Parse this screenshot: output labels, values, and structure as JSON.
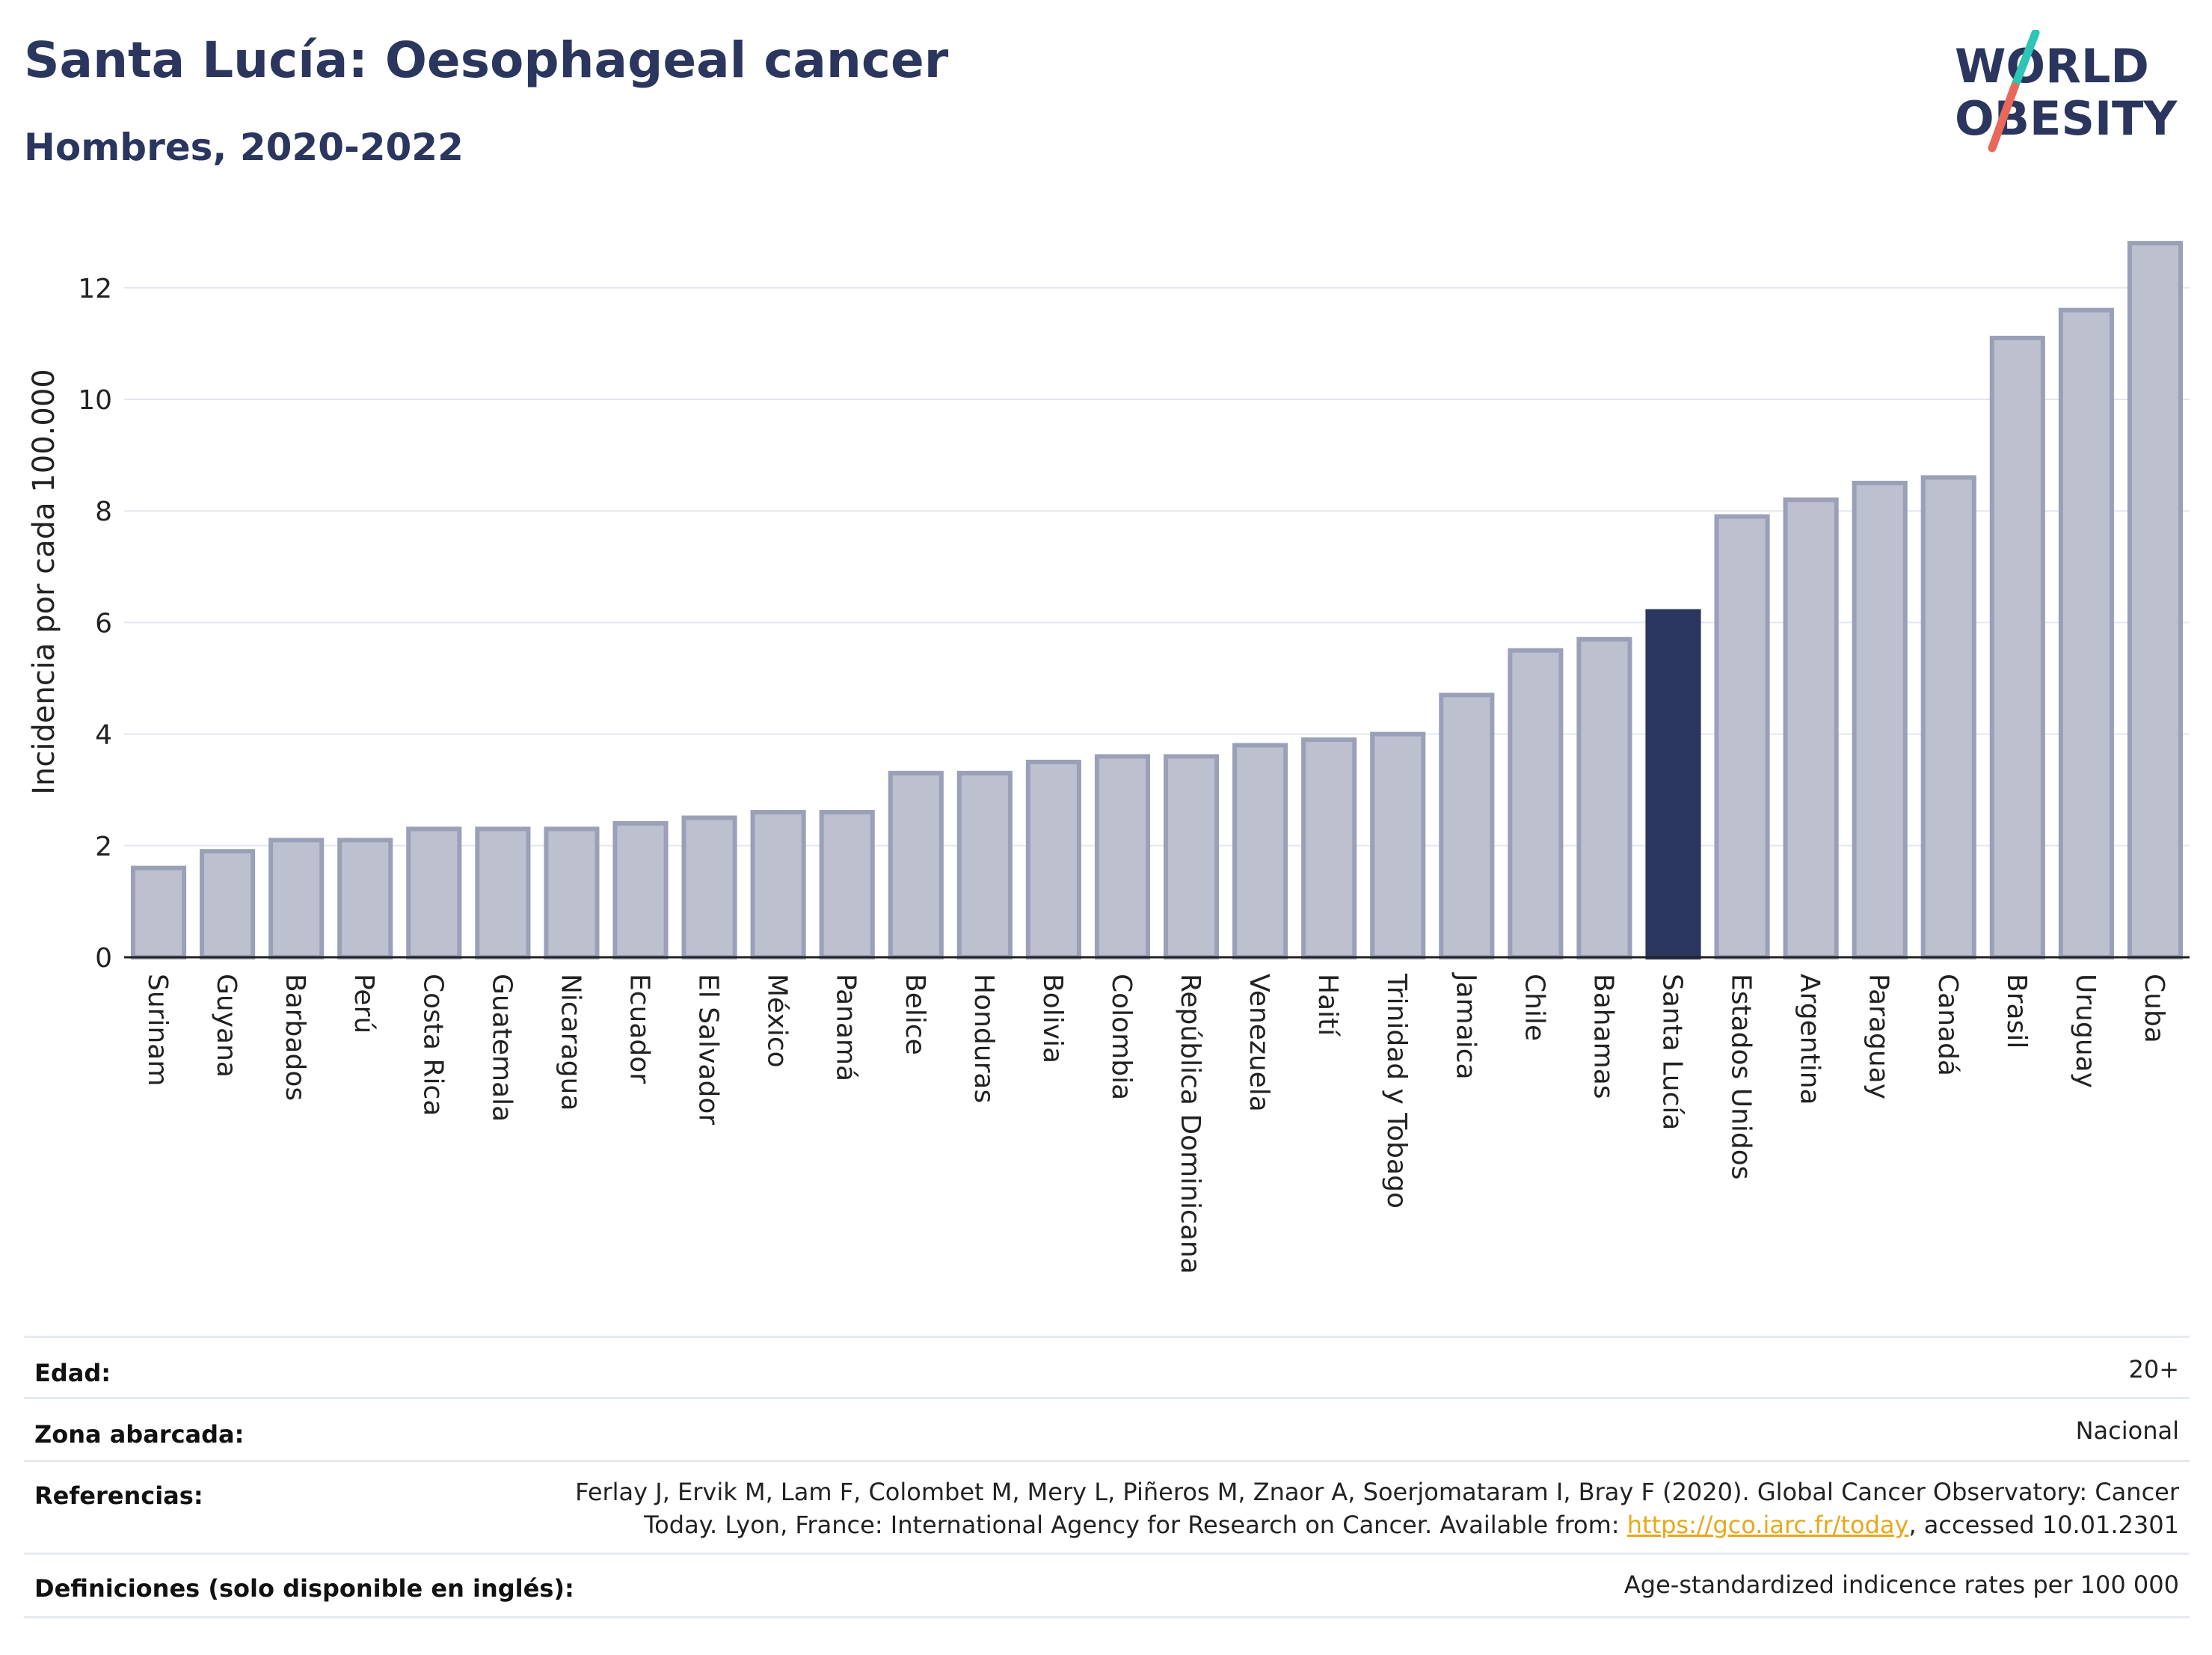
{
  "title": "Santa Lucía: Oesophageal cancer",
  "subtitle": "Hombres, 2020-2022",
  "logo": {
    "line1": "WORLD",
    "line2": "OBESITY",
    "colors": {
      "text": "#2b365e",
      "slash_top": "#2ec4b6",
      "slash_bottom": "#e8685a"
    }
  },
  "colors": {
    "bar": "#bcc0cf",
    "bar_border": "#9ba0b8",
    "highlight": "#2b365e",
    "grid": "#e3e6ee",
    "axis": "#222222"
  },
  "chart_data": {
    "type": "bar",
    "ylabel": "Incidencia por cada 100.000",
    "ylim": [
      0,
      13
    ],
    "yticks": [
      0,
      2,
      4,
      6,
      8,
      10,
      12
    ],
    "grid": true,
    "highlight": "Santa Lucía",
    "categories": [
      "Surinam",
      "Guyana",
      "Barbados",
      "Perú",
      "Costa Rica",
      "Guatemala",
      "Nicaragua",
      "Ecuador",
      "El Salvador",
      "México",
      "Panamá",
      "Belice",
      "Honduras",
      "Bolivia",
      "Colombia",
      "República Dominicana",
      "Venezuela",
      "Haití",
      "Trinidad y Tobago",
      "Jamaica",
      "Chile",
      "Bahamas",
      "Santa Lucía",
      "Estados Unidos",
      "Argentina",
      "Paraguay",
      "Canadá",
      "Brasil",
      "Uruguay",
      "Cuba"
    ],
    "values": [
      1.6,
      1.9,
      2.1,
      2.1,
      2.3,
      2.3,
      2.3,
      2.4,
      2.5,
      2.6,
      2.6,
      3.3,
      3.3,
      3.5,
      3.6,
      3.6,
      3.8,
      3.9,
      4.0,
      4.7,
      5.5,
      5.7,
      6.2,
      7.9,
      8.2,
      8.5,
      8.6,
      11.1,
      11.6,
      12.8
    ]
  },
  "info": {
    "edad": {
      "label": "Edad:",
      "value": "20+"
    },
    "zona": {
      "label": "Zona abarcada:",
      "value": "Nacional"
    },
    "referencias": {
      "label": "Referencias:",
      "line1": "Ferlay J, Ervik M, Lam F, Colombet M, Mery L, Piñeros M, Znaor A, Soerjomataram I, Bray F (2020). Global Cancer Observatory: Cancer",
      "line2_pre": "Today. Lyon, France: International Agency for Research on Cancer. Available from: ",
      "link": "https://gco.iarc.fr/today",
      "line2_post": ", accessed 10.01.2301"
    },
    "definiciones": {
      "label": "Definiciones (solo disponible en inglés):",
      "value": "Age-standardized indicence rates per 100 000"
    }
  }
}
